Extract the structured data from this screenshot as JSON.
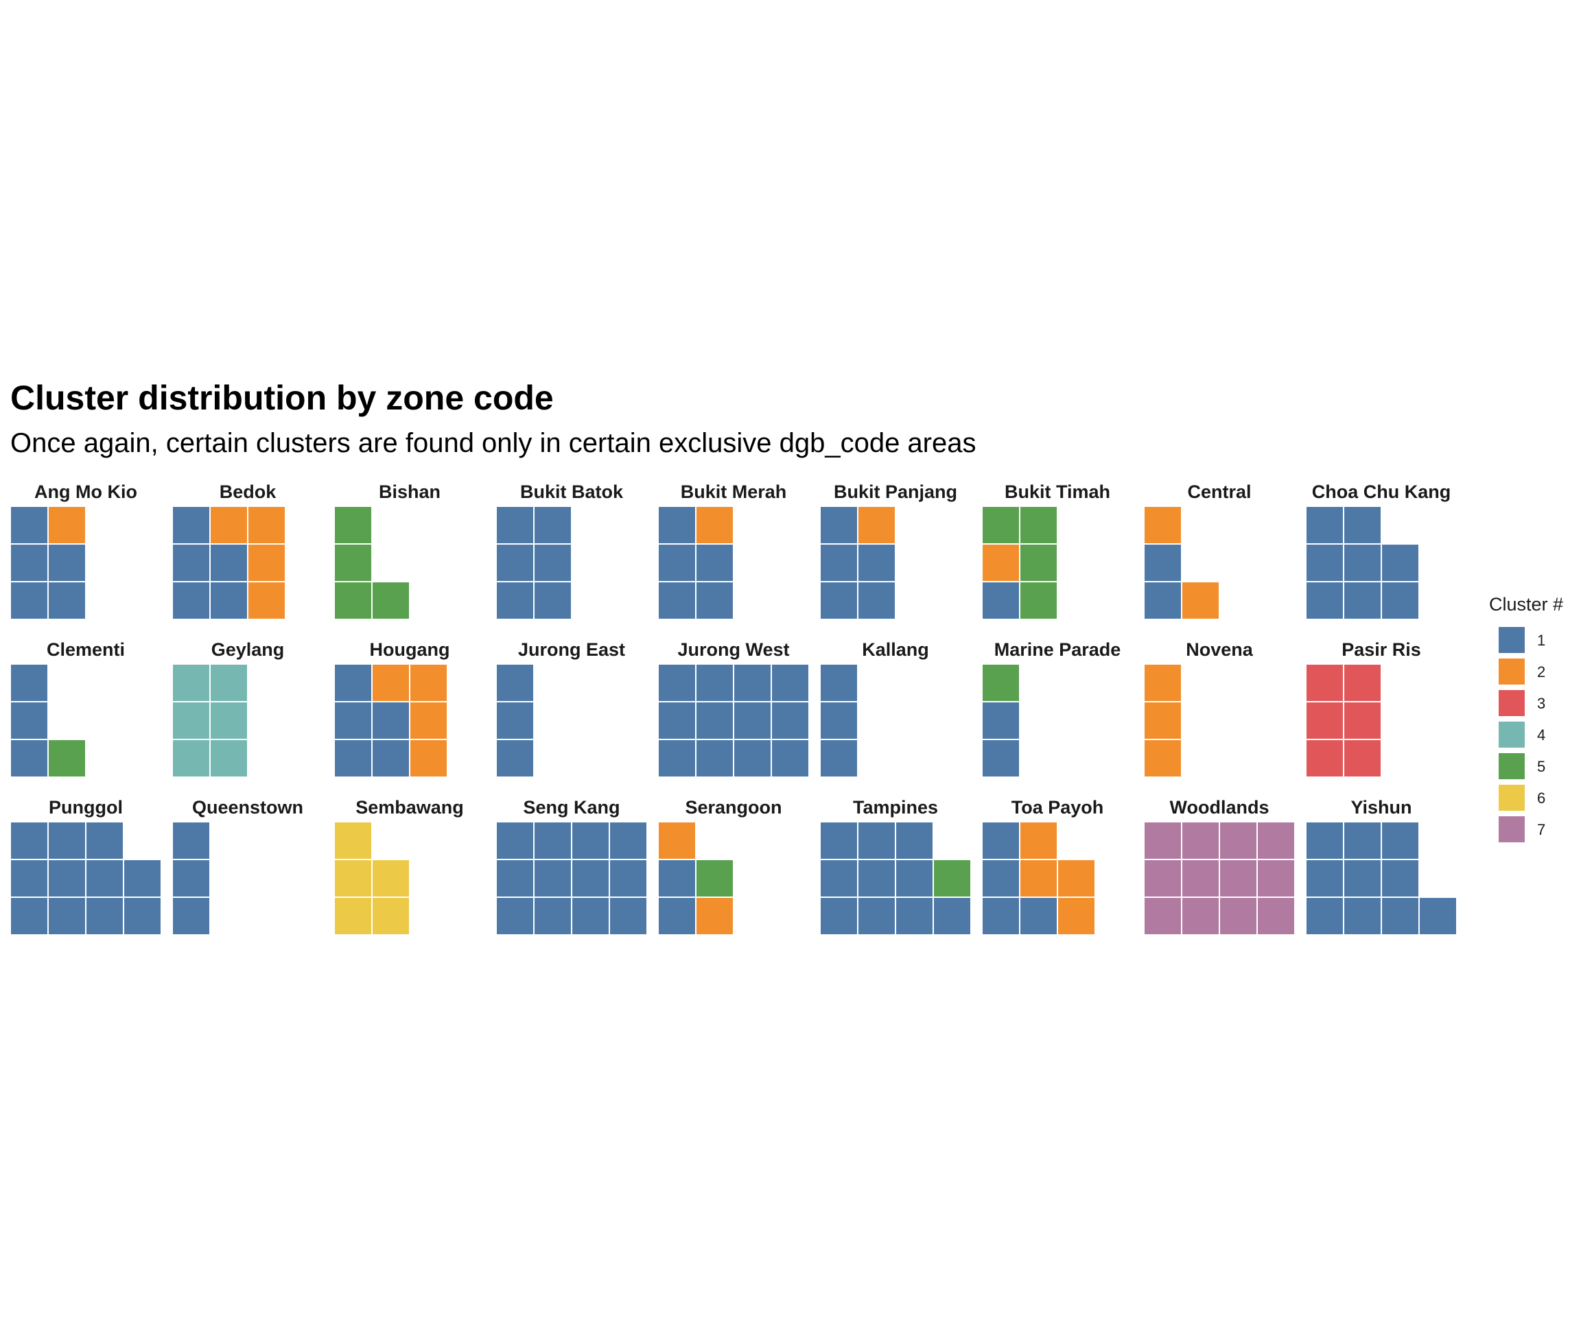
{
  "chart_data": {
    "type": "waffle",
    "title": "Cluster distribution by zone code",
    "subtitle": "Once again, certain clusters are found only in certain exclusive dgb_code areas",
    "legend": {
      "title": "Cluster #",
      "position": "right",
      "entries": [
        {
          "label": "1",
          "color": "#4e79a7"
        },
        {
          "label": "2",
          "color": "#f28e2b"
        },
        {
          "label": "3",
          "color": "#e15759"
        },
        {
          "label": "4",
          "color": "#76b7b2"
        },
        {
          "label": "5",
          "color": "#59a14f"
        },
        {
          "label": "6",
          "color": "#edc948"
        },
        {
          "label": "7",
          "color": "#b07aa1"
        }
      ]
    },
    "rows_per_column": 3,
    "panels": [
      {
        "name": "Ang Mo Kio",
        "tiles": [
          "1",
          "1",
          "1",
          "1",
          "1",
          "2"
        ]
      },
      {
        "name": "Bedok",
        "tiles": [
          "1",
          "1",
          "1",
          "1",
          "1",
          "2",
          "2",
          "2",
          "2"
        ]
      },
      {
        "name": "Bishan",
        "tiles": [
          "5",
          "5",
          "5",
          "5"
        ]
      },
      {
        "name": "Bukit Batok",
        "tiles": [
          "1",
          "1",
          "1",
          "1",
          "1",
          "1"
        ]
      },
      {
        "name": "Bukit Merah",
        "tiles": [
          "1",
          "1",
          "1",
          "1",
          "1",
          "2"
        ]
      },
      {
        "name": "Bukit Panjang",
        "tiles": [
          "1",
          "1",
          "1",
          "1",
          "1",
          "2"
        ]
      },
      {
        "name": "Bukit Timah",
        "tiles": [
          "1",
          "2",
          "5",
          "5",
          "5",
          "5"
        ]
      },
      {
        "name": "Central",
        "tiles": [
          "1",
          "1",
          "2",
          "2"
        ]
      },
      {
        "name": "Choa Chu Kang",
        "tiles": [
          "1",
          "1",
          "1",
          "1",
          "1",
          "1",
          "1",
          "1"
        ]
      },
      {
        "name": "Clementi",
        "tiles": [
          "1",
          "1",
          "1",
          "5"
        ]
      },
      {
        "name": "Geylang",
        "tiles": [
          "4",
          "4",
          "4",
          "4",
          "4",
          "4"
        ]
      },
      {
        "name": "Hougang",
        "tiles": [
          "1",
          "1",
          "1",
          "1",
          "1",
          "2",
          "2",
          "2",
          "2"
        ]
      },
      {
        "name": "Jurong East",
        "tiles": [
          "1",
          "1",
          "1"
        ]
      },
      {
        "name": "Jurong West",
        "tiles": [
          "1",
          "1",
          "1",
          "1",
          "1",
          "1",
          "1",
          "1",
          "1",
          "1",
          "1",
          "1"
        ]
      },
      {
        "name": "Kallang",
        "tiles": [
          "1",
          "1",
          "1"
        ]
      },
      {
        "name": "Marine Parade",
        "tiles": [
          "1",
          "1",
          "5"
        ]
      },
      {
        "name": "Novena",
        "tiles": [
          "2",
          "2",
          "2"
        ]
      },
      {
        "name": "Pasir Ris",
        "tiles": [
          "3",
          "3",
          "3",
          "3",
          "3",
          "3"
        ]
      },
      {
        "name": "Punggol",
        "tiles": [
          "1",
          "1",
          "1",
          "1",
          "1",
          "1",
          "1",
          "1",
          "1",
          "1",
          "1"
        ]
      },
      {
        "name": "Queenstown",
        "tiles": [
          "1",
          "1",
          "1"
        ]
      },
      {
        "name": "Sembawang",
        "tiles": [
          "6",
          "6",
          "6",
          "6",
          "6"
        ]
      },
      {
        "name": "Seng Kang",
        "tiles": [
          "1",
          "1",
          "1",
          "1",
          "1",
          "1",
          "1",
          "1",
          "1",
          "1",
          "1",
          "1"
        ]
      },
      {
        "name": "Serangoon",
        "tiles": [
          "1",
          "1",
          "2",
          "2",
          "5"
        ]
      },
      {
        "name": "Tampines",
        "tiles": [
          "1",
          "1",
          "1",
          "1",
          "1",
          "1",
          "1",
          "1",
          "1",
          "1",
          "5"
        ]
      },
      {
        "name": "Toa Payoh",
        "tiles": [
          "1",
          "1",
          "1",
          "1",
          "2",
          "2",
          "2",
          "2"
        ]
      },
      {
        "name": "Woodlands",
        "tiles": [
          "7",
          "7",
          "7",
          "7",
          "7",
          "7",
          "7",
          "7",
          "7",
          "7",
          "7",
          "7"
        ]
      },
      {
        "name": "Yishun",
        "tiles": [
          "1",
          "1",
          "1",
          "1",
          "1",
          "1",
          "1",
          "1",
          "1",
          "1"
        ]
      }
    ]
  }
}
